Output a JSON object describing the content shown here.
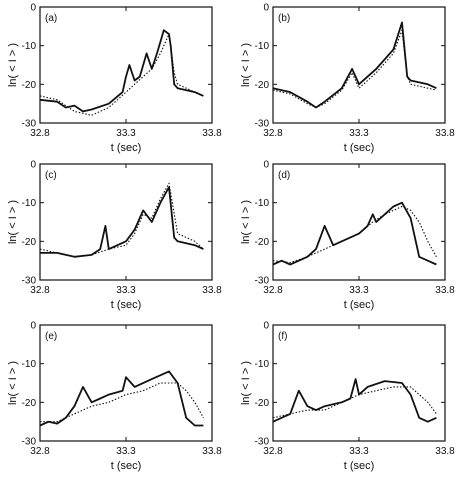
{
  "chart_data": [
    {
      "type": "line",
      "panel_label": "(a)",
      "xlabel": "t (sec)",
      "ylabel": "ln( < I > )",
      "xlim": [
        32.8,
        33.8
      ],
      "ylim": [
        -30,
        0
      ],
      "xticks": [
        "32.8",
        "33.3",
        "33.8"
      ],
      "yticks": [
        "0",
        "-10",
        "-20",
        "-30"
      ],
      "series": [
        {
          "style": "solid",
          "x": [
            32.8,
            32.9,
            32.95,
            33.0,
            33.05,
            33.1,
            33.2,
            33.28,
            33.3,
            33.32,
            33.35,
            33.38,
            33.42,
            33.45,
            33.48,
            33.52,
            33.55,
            33.56,
            33.58,
            33.6,
            33.7,
            33.75
          ],
          "y": [
            -24,
            -24.5,
            -26,
            -25.5,
            -27,
            -26.5,
            -25,
            -22,
            -18,
            -15,
            -19,
            -18,
            -12,
            -16,
            -12,
            -6,
            -7,
            -10,
            -20,
            -21,
            -22,
            -23
          ]
        },
        {
          "style": "dotted",
          "x": [
            32.8,
            32.9,
            33.0,
            33.05,
            33.1,
            33.2,
            33.3,
            33.35,
            33.4,
            33.45,
            33.5,
            33.55,
            33.58,
            33.6,
            33.7,
            33.75
          ],
          "y": [
            -23,
            -24,
            -27,
            -27.5,
            -28,
            -26,
            -22,
            -20,
            -18,
            -16,
            -12,
            -7,
            -17,
            -20,
            -22,
            -23
          ]
        }
      ]
    },
    {
      "type": "line",
      "panel_label": "(b)",
      "xlabel": "t (sec)",
      "ylabel": "ln( < I > )",
      "xlim": [
        32.8,
        33.8
      ],
      "ylim": [
        -30,
        0
      ],
      "xticks": [
        "32.8",
        "33.3",
        "33.8"
      ],
      "yticks": [
        "0",
        "-10",
        "-20",
        "-30"
      ],
      "series": [
        {
          "style": "solid",
          "x": [
            32.8,
            32.9,
            33.0,
            33.05,
            33.1,
            33.2,
            33.26,
            33.3,
            33.35,
            33.4,
            33.5,
            33.55,
            33.58,
            33.6,
            33.7,
            33.75
          ],
          "y": [
            -21,
            -22,
            -24.5,
            -26,
            -24.5,
            -21,
            -16,
            -20,
            -18,
            -16,
            -11,
            -4,
            -18,
            -19,
            -20,
            -21
          ]
        },
        {
          "style": "dotted",
          "x": [
            32.8,
            32.9,
            33.0,
            33.05,
            33.1,
            33.2,
            33.26,
            33.3,
            33.35,
            33.4,
            33.5,
            33.55,
            33.58,
            33.6,
            33.7,
            33.75
          ],
          "y": [
            -21.5,
            -22.5,
            -25,
            -26,
            -25,
            -21.5,
            -17,
            -21,
            -19,
            -17,
            -12,
            -6,
            -18,
            -20,
            -21,
            -21.5
          ]
        }
      ]
    },
    {
      "type": "line",
      "panel_label": "(c)",
      "xlabel": "t (sec)",
      "ylabel": "ln( < I > )",
      "xlim": [
        32.8,
        33.8
      ],
      "ylim": [
        -30,
        0
      ],
      "xticks": [
        "32.8",
        "33.3",
        "33.8"
      ],
      "yticks": [
        "0",
        "-10",
        "-20",
        "-30"
      ],
      "series": [
        {
          "style": "solid",
          "x": [
            32.8,
            32.9,
            33.0,
            33.1,
            33.15,
            33.18,
            33.2,
            33.25,
            33.3,
            33.35,
            33.4,
            33.45,
            33.5,
            33.55,
            33.58,
            33.6,
            33.7,
            33.75
          ],
          "y": [
            -23,
            -23,
            -24,
            -23.5,
            -22,
            -16,
            -22,
            -21,
            -20,
            -17,
            -12,
            -15,
            -10,
            -6,
            -19,
            -20,
            -21,
            -22
          ]
        },
        {
          "style": "dotted",
          "x": [
            32.8,
            32.9,
            33.0,
            33.1,
            33.2,
            33.3,
            33.35,
            33.4,
            33.45,
            33.5,
            33.55,
            33.6,
            33.7,
            33.75
          ],
          "y": [
            -22,
            -23,
            -24,
            -23.5,
            -22,
            -21,
            -18,
            -13,
            -14,
            -9,
            -5,
            -18,
            -20,
            -22
          ]
        }
      ]
    },
    {
      "type": "line",
      "panel_label": "(d)",
      "xlabel": "t (sec)",
      "ylabel": "ln( < I > )",
      "xlim": [
        32.8,
        33.8
      ],
      "ylim": [
        -30,
        0
      ],
      "xticks": [
        "32.8",
        "33.3",
        "33.8"
      ],
      "yticks": [
        "0",
        "-10",
        "-20",
        "-30"
      ],
      "series": [
        {
          "style": "solid",
          "x": [
            32.8,
            32.85,
            32.9,
            32.95,
            33.0,
            33.05,
            33.1,
            33.15,
            33.2,
            33.3,
            33.35,
            33.38,
            33.4,
            33.45,
            33.5,
            33.55,
            33.6,
            33.65,
            33.7,
            33.75
          ],
          "y": [
            -26,
            -25,
            -26,
            -25,
            -24,
            -22,
            -16,
            -21,
            -20,
            -18,
            -16,
            -13,
            -15,
            -13,
            -11,
            -10,
            -14,
            -24,
            -25,
            -26
          ]
        },
        {
          "style": "dotted",
          "x": [
            32.8,
            32.9,
            33.0,
            33.1,
            33.2,
            33.3,
            33.38,
            33.45,
            33.55,
            33.6,
            33.65,
            33.7,
            33.75
          ],
          "y": [
            -25,
            -25.5,
            -24,
            -22,
            -20,
            -18,
            -15,
            -13,
            -11,
            -12,
            -15,
            -20,
            -24
          ]
        }
      ]
    },
    {
      "type": "line",
      "panel_label": "(e)",
      "xlabel": "t (sec)",
      "ylabel": "ln( < I > )",
      "xlim": [
        32.8,
        33.8
      ],
      "ylim": [
        -30,
        0
      ],
      "xticks": [
        "32.8",
        "33.3",
        "33.8"
      ],
      "yticks": [
        "0",
        "-10",
        "-20",
        "-30"
      ],
      "series": [
        {
          "style": "solid",
          "x": [
            32.8,
            32.85,
            32.9,
            32.95,
            33.0,
            33.05,
            33.1,
            33.15,
            33.2,
            33.28,
            33.3,
            33.35,
            33.45,
            33.55,
            33.6,
            33.65,
            33.7,
            33.75
          ],
          "y": [
            -26,
            -25,
            -25.5,
            -24,
            -21,
            -16,
            -20,
            -19,
            -18,
            -17,
            -13.5,
            -16,
            -14,
            -12,
            -15,
            -24,
            -26,
            -26
          ]
        },
        {
          "style": "dotted",
          "x": [
            32.8,
            32.9,
            33.0,
            33.1,
            33.2,
            33.3,
            33.4,
            33.5,
            33.6,
            33.65,
            33.7,
            33.75
          ],
          "y": [
            -25,
            -25,
            -23,
            -21,
            -20,
            -18,
            -17,
            -15,
            -15,
            -17,
            -20,
            -24
          ]
        }
      ]
    },
    {
      "type": "line",
      "panel_label": "(f)",
      "xlabel": "t (sec)",
      "ylabel": "ln( < I > )",
      "xlim": [
        32.8,
        33.8
      ],
      "ylim": [
        -30,
        0
      ],
      "xticks": [
        "32.8",
        "33.3",
        "33.8"
      ],
      "yticks": [
        "0",
        "-10",
        "-20",
        "-30"
      ],
      "series": [
        {
          "style": "solid",
          "x": [
            32.8,
            32.85,
            32.9,
            32.95,
            33.0,
            33.05,
            33.1,
            33.2,
            33.25,
            33.28,
            33.3,
            33.35,
            33.45,
            33.55,
            33.6,
            33.65,
            33.7,
            33.75
          ],
          "y": [
            -25,
            -24,
            -23,
            -17,
            -21,
            -22,
            -21,
            -20,
            -19,
            -14,
            -18,
            -16,
            -14.5,
            -15,
            -18,
            -24,
            -25,
            -24
          ]
        },
        {
          "style": "dotted",
          "x": [
            32.8,
            32.9,
            33.0,
            33.1,
            33.2,
            33.3,
            33.4,
            33.5,
            33.6,
            33.65,
            33.7,
            33.75
          ],
          "y": [
            -24,
            -23,
            -22,
            -22,
            -20,
            -18,
            -17,
            -16,
            -16,
            -18,
            -20,
            -23
          ]
        }
      ]
    }
  ]
}
